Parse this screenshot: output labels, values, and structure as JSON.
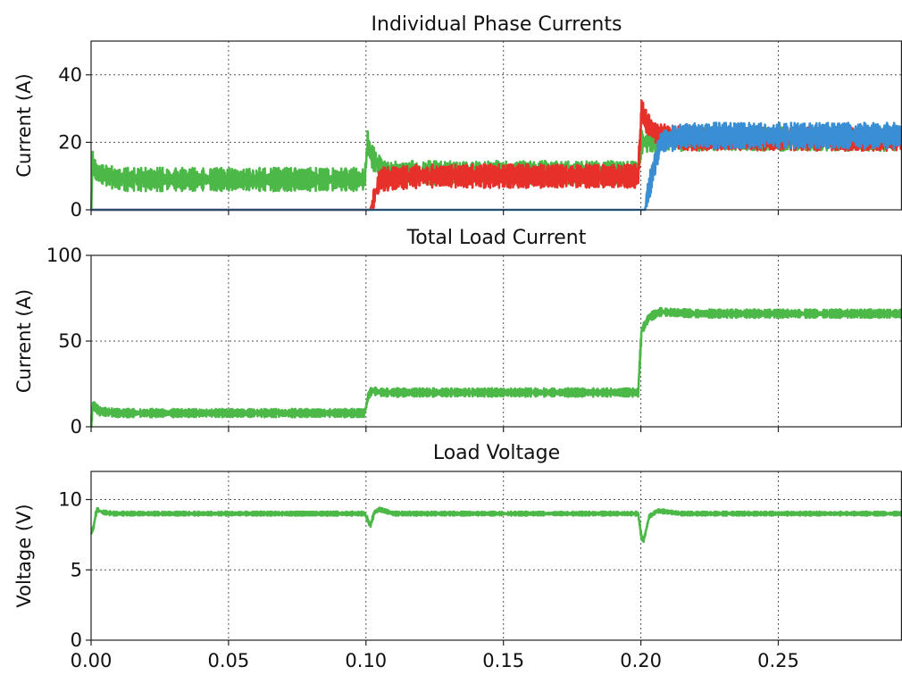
{
  "chart_data": [
    {
      "type": "line",
      "title": "Individual Phase Currents",
      "ylabel": "Current (A)",
      "xlabel": "",
      "xlim": [
        0,
        0.295
      ],
      "ylim": [
        0,
        50
      ],
      "yticks": [
        0,
        20,
        40
      ],
      "xticks": [
        0.0,
        0.05,
        0.1,
        0.15,
        0.2,
        0.25
      ],
      "grid": true,
      "colors": {
        "green": "#4cb848",
        "red": "#e8302a",
        "blue": "#3a8fd4"
      },
      "series": [
        {
          "color": "green",
          "x": [
            0,
            0.0005,
            0.002,
            0.01,
            0.05,
            0.0995,
            0.1005,
            0.102,
            0.106,
            0.12,
            0.199,
            0.2002,
            0.21,
            0.25,
            0.295
          ],
          "y": [
            0,
            14,
            11,
            9,
            9,
            9,
            20,
            16,
            11,
            11,
            11,
            20,
            21,
            21,
            21
          ],
          "ripple": 3.5
        },
        {
          "color": "red",
          "x": [
            0,
            0.1,
            0.1015,
            0.105,
            0.12,
            0.199,
            0.2002,
            0.202,
            0.206,
            0.22,
            0.295
          ],
          "y": [
            0,
            0,
            0,
            9,
            10,
            10,
            30,
            26,
            22,
            21,
            21
          ],
          "ripple": 3.5
        },
        {
          "color": "blue",
          "x": [
            0,
            0.2015,
            0.2025,
            0.207,
            0.215,
            0.25,
            0.295
          ],
          "y": [
            0,
            0,
            5,
            20,
            22,
            22,
            22
          ],
          "ripple": 3.8
        }
      ]
    },
    {
      "type": "line",
      "title": "Total Load Current",
      "ylabel": "Current (A)",
      "xlabel": "",
      "xlim": [
        0,
        0.295
      ],
      "ylim": [
        0,
        100
      ],
      "yticks": [
        0,
        50,
        100
      ],
      "xticks": [
        0.0,
        0.05,
        0.1,
        0.15,
        0.2,
        0.25
      ],
      "grid": true,
      "colors": {
        "green": "#4cb848"
      },
      "series": [
        {
          "color": "green",
          "x": [
            0,
            0.0005,
            0.003,
            0.01,
            0.05,
            0.0995,
            0.1008,
            0.102,
            0.106,
            0.15,
            0.199,
            0.2002,
            0.203,
            0.207,
            0.22,
            0.295
          ],
          "y": [
            0,
            13,
            9,
            8,
            8,
            8,
            18,
            21,
            20,
            20,
            20,
            56,
            64,
            67,
            66,
            66
          ],
          "ripple": 2.5
        }
      ]
    },
    {
      "type": "line",
      "title": "Load Voltage",
      "ylabel": "Voltage (V)",
      "xlabel": "",
      "xlim": [
        0,
        0.295
      ],
      "ylim": [
        0,
        12
      ],
      "yticks": [
        0,
        5,
        10
      ],
      "xticks": [
        0.0,
        0.05,
        0.1,
        0.15,
        0.2,
        0.25
      ],
      "xticklabels": [
        "0.00",
        "0.05",
        "0.10",
        "0.15",
        "0.20",
        "0.25"
      ],
      "grid": true,
      "colors": {
        "green": "#4cb848"
      },
      "series": [
        {
          "color": "green",
          "x": [
            0,
            0.0008,
            0.002,
            0.004,
            0.008,
            0.03,
            0.0995,
            0.1005,
            0.1015,
            0.103,
            0.105,
            0.11,
            0.199,
            0.2002,
            0.201,
            0.203,
            0.206,
            0.215,
            0.295
          ],
          "y": [
            7.6,
            8.0,
            9.3,
            9.1,
            9.0,
            9.0,
            9.0,
            8.6,
            8.1,
            9.1,
            9.3,
            9.0,
            9.0,
            7.3,
            7.1,
            8.8,
            9.2,
            9.0,
            9.0
          ],
          "ripple": 0.15
        }
      ]
    }
  ]
}
